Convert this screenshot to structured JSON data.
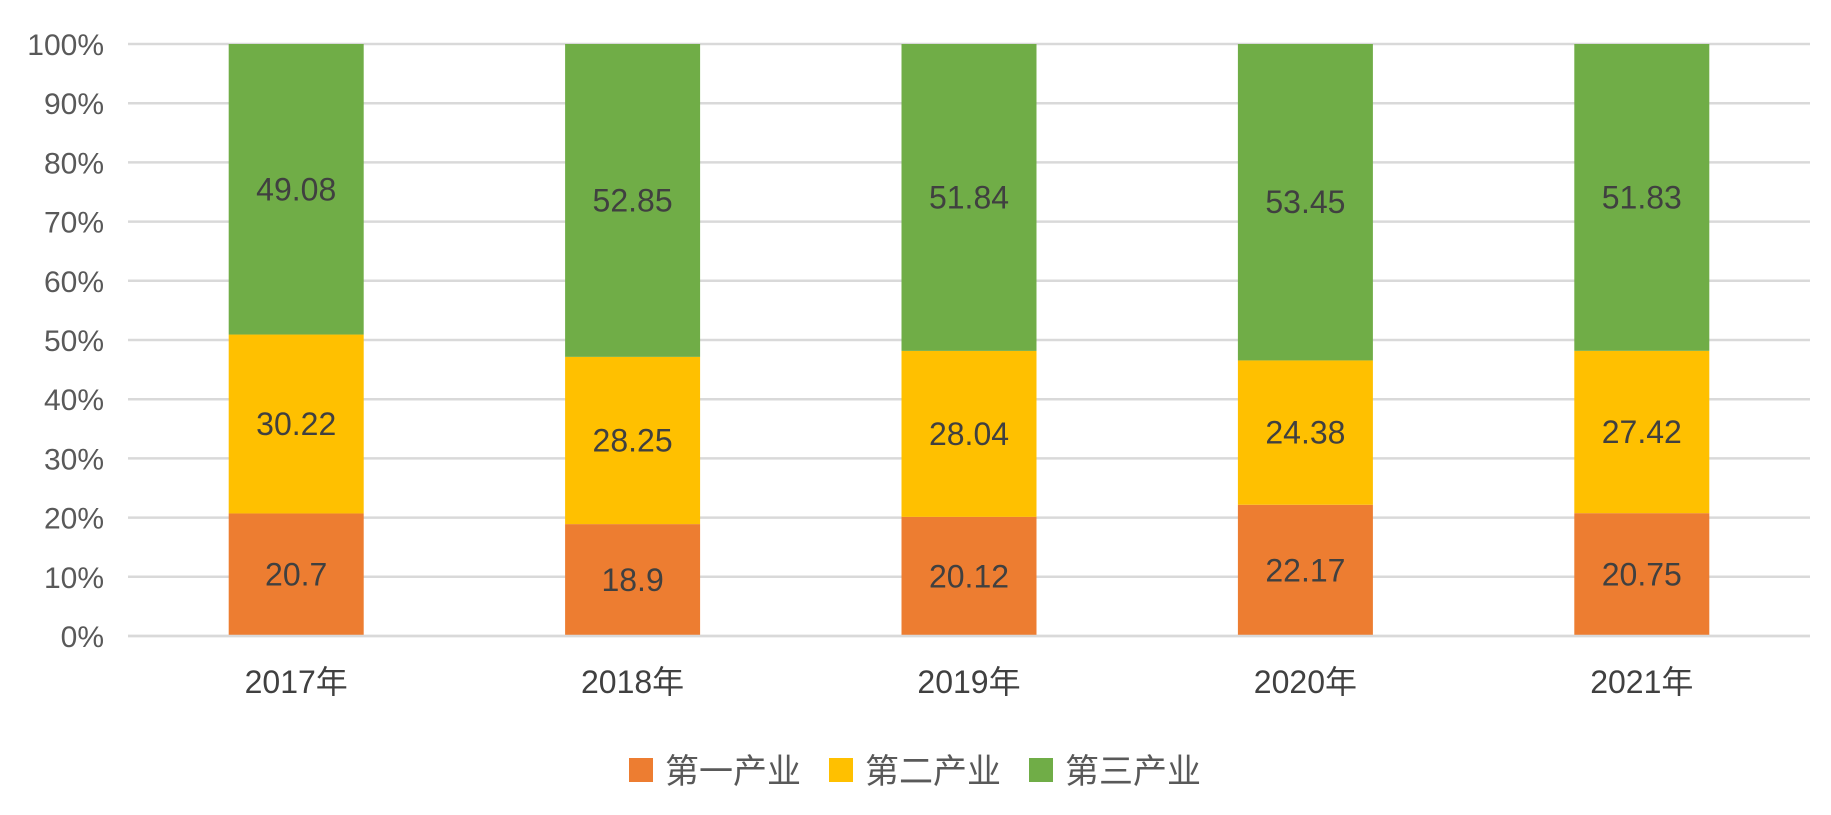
{
  "chart_data": {
    "type": "bar",
    "stacked": "percent",
    "categories": [
      "2017年",
      "2018年",
      "2019年",
      "2020年",
      "2021年"
    ],
    "series": [
      {
        "name": "第一产业",
        "color": "#ED7D31",
        "values": [
          20.7,
          18.9,
          20.12,
          22.17,
          20.75
        ],
        "labels": [
          "20.7",
          "18.9",
          "20.12",
          "22.17",
          "20.75"
        ]
      },
      {
        "name": "第二产业",
        "color": "#FFC000",
        "values": [
          30.22,
          28.25,
          28.04,
          24.38,
          27.42
        ],
        "labels": [
          "30.22",
          "28.25",
          "28.04",
          "24.38",
          "27.42"
        ]
      },
      {
        "name": "第三产业",
        "color": "#70AD47",
        "values": [
          49.08,
          52.85,
          51.84,
          53.45,
          51.83
        ],
        "labels": [
          "49.08",
          "52.85",
          "51.84",
          "53.45",
          "51.83"
        ]
      }
    ],
    "yticks": [
      "0%",
      "10%",
      "20%",
      "30%",
      "40%",
      "50%",
      "60%",
      "70%",
      "80%",
      "90%",
      "100%"
    ],
    "ylim": [
      0,
      100
    ],
    "grid": true,
    "legend_position": "bottom"
  }
}
